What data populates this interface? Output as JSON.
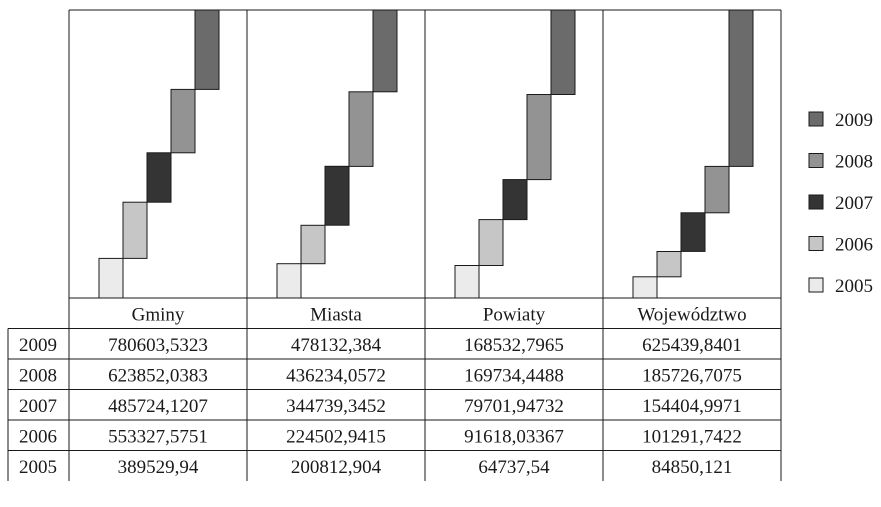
{
  "chart_data": {
    "type": "bar",
    "subtype": "stacked-waterfall-with-data-table",
    "categories": [
      "Gminy",
      "Miasta",
      "Powiaty",
      "Województwo"
    ],
    "series": [
      {
        "name": "2005",
        "color": "#ebebeb",
        "values": [
          389529.94,
          200812.904,
          64737.54,
          84850.121
        ],
        "labels": [
          "389529,94",
          "200812,904",
          "64737,54",
          "84850,121"
        ]
      },
      {
        "name": "2006",
        "color": "#c6c6c6",
        "values": [
          553327.5751,
          224502.9415,
          91618.03367,
          101291.7422
        ],
        "labels": [
          "553327,5751",
          "224502,9415",
          "91618,03367",
          "101291,7422"
        ]
      },
      {
        "name": "2007",
        "color": "#343434",
        "values": [
          485724.1207,
          344739.3452,
          79701.94732,
          154404.9971
        ],
        "labels": [
          "485724,1207",
          "344739,3452",
          "79701,94732",
          "154404,9971"
        ]
      },
      {
        "name": "2008",
        "color": "#939393",
        "values": [
          623852.0383,
          436234.0572,
          169734.4488,
          185726.7075
        ],
        "labels": [
          "623852,0383",
          "436234,0572",
          "169734,4488",
          "185726,7075"
        ]
      },
      {
        "name": "2009",
        "color": "#6b6b6b",
        "values": [
          780603.5323,
          478132.384,
          168532.7965,
          625439.8401
        ],
        "labels": [
          "780603,5323",
          "478132,384",
          "168532,7965",
          "625439,8401"
        ]
      }
    ],
    "legend": {
      "position": "right",
      "order": [
        "2009",
        "2008",
        "2007",
        "2006",
        "2005"
      ]
    },
    "table_row_order": [
      "2009",
      "2008",
      "2007",
      "2006",
      "2005"
    ],
    "grid": false
  }
}
